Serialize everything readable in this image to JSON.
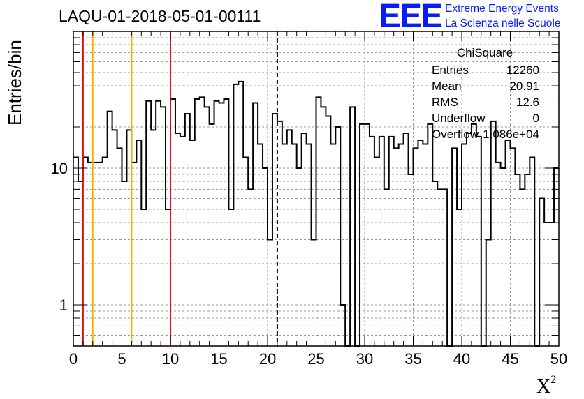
{
  "title": "LAQU-01-2018-05-01-00111",
  "logo": {
    "mark": "EEE",
    "line1": "Extreme Energy Events",
    "line2": "La Scienza nelle Scuole",
    "color": "#0a1aff"
  },
  "stats": {
    "title": "ChiSquare",
    "rows": [
      {
        "key": "Entries",
        "value": "12260"
      },
      {
        "key": "Mean",
        "value": "20.91"
      },
      {
        "key": "RMS",
        "value": "12.6"
      },
      {
        "key": "Underflow",
        "value": "0"
      },
      {
        "key": "Overflow",
        "value": "1.086e+04"
      }
    ]
  },
  "chart_data": {
    "type": "histogram",
    "xlabel": "X",
    "xlabel_sup": "2",
    "ylabel": "Entries/bin",
    "xlim": [
      0,
      50
    ],
    "ylim": [
      0.5,
      100
    ],
    "yscale": "log",
    "xticks": [
      "0",
      "5",
      "10",
      "15",
      "20",
      "25",
      "30",
      "35",
      "40",
      "45",
      "50"
    ],
    "yticks": [
      "1",
      "10"
    ],
    "grid": true,
    "bin_width": 0.5,
    "values": [
      12,
      8,
      12,
      11,
      11,
      11,
      12,
      26,
      19,
      14,
      8,
      19,
      11,
      16,
      5,
      31,
      19,
      31,
      28,
      5,
      32,
      18,
      17,
      25,
      16,
      32,
      33,
      28,
      21,
      31,
      30,
      32,
      5,
      41,
      43,
      12,
      7,
      30,
      15,
      10,
      3,
      25,
      22,
      15,
      19,
      15,
      10,
      18,
      15,
      3,
      33,
      28,
      24,
      15,
      20,
      1,
      0,
      28,
      0,
      21,
      21,
      17,
      12,
      17,
      7,
      17,
      14,
      15,
      18,
      9,
      14,
      16,
      15,
      21,
      8,
      7,
      7,
      0,
      14,
      5,
      15,
      18,
      21,
      17,
      0,
      3,
      22,
      11,
      10,
      16,
      14,
      9,
      7,
      9,
      12,
      0,
      6,
      4,
      4,
      10
    ],
    "vlines": [
      {
        "x": 1,
        "color": "#e01010",
        "style": "solid"
      },
      {
        "x": 2,
        "color": "#f0b400",
        "style": "solid"
      },
      {
        "x": 6,
        "color": "#f0b400",
        "style": "solid"
      },
      {
        "x": 10,
        "color": "#e01010",
        "style": "solid"
      },
      {
        "x": 21,
        "color": "#000000",
        "style": "dashed"
      }
    ]
  }
}
